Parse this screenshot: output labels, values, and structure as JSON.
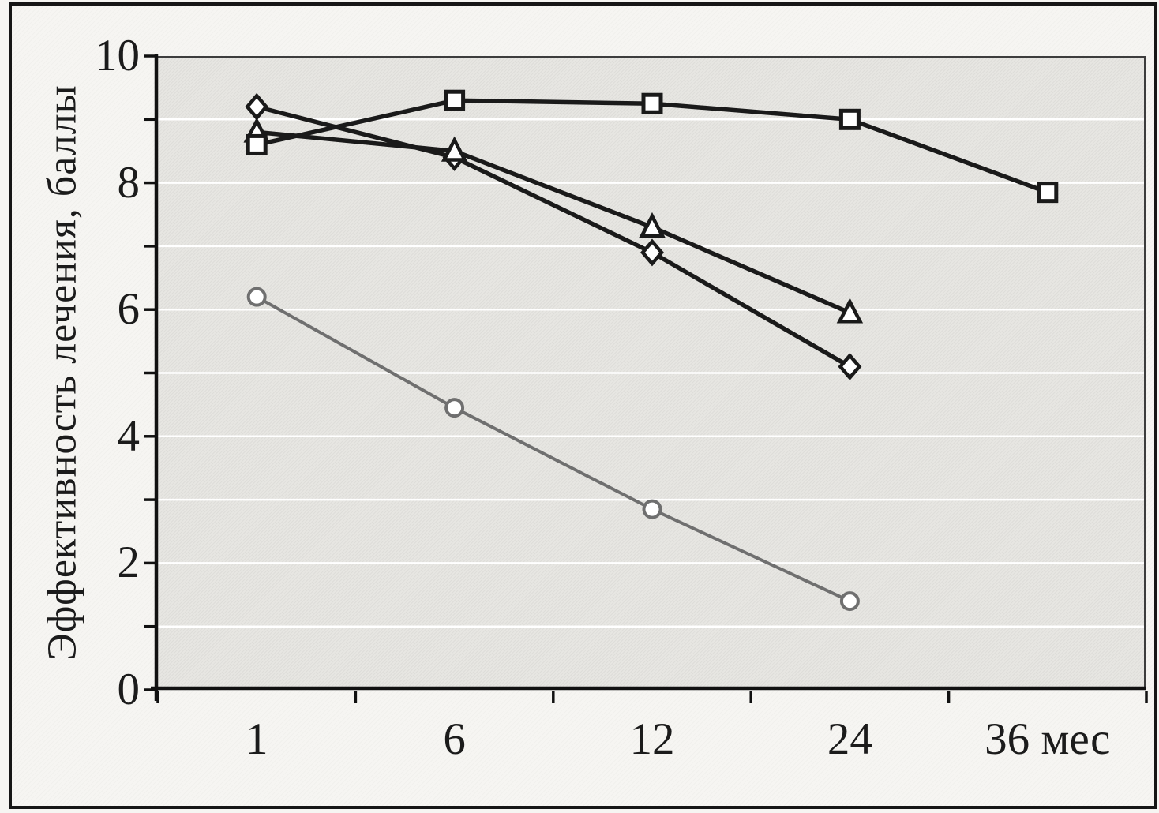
{
  "figure": {
    "kind": "scanned line chart, no title, no legend",
    "frame_color": "#161616"
  },
  "colors": {
    "paper": "#f6f5f2",
    "plot_background": "#e7e6e2",
    "gridline": "#ffffff",
    "axis": "#111111",
    "plot_border": "#3d3d3d",
    "series_black": "#1a1a1a",
    "series_gray": "#6f6f6f",
    "marker_fill": "#ffffff",
    "text": "#1b1b1b"
  },
  "chart_data": {
    "type": "line",
    "title": "",
    "ylabel": "Эффективность лечения, баллы",
    "xlabel": "мес",
    "categories": [
      1,
      6,
      12,
      24,
      36
    ],
    "x_tick_labels": [
      "1",
      "6",
      "12",
      "24",
      "36 мес"
    ],
    "ylim": [
      0,
      10
    ],
    "y_major_ticks": [
      0,
      2,
      4,
      6,
      8,
      10
    ],
    "y_minor_ticks": [
      1,
      3,
      5,
      7,
      9
    ],
    "gridlines_at": [
      1,
      2,
      3,
      4,
      5,
      6,
      7,
      8,
      9
    ],
    "grid": "horizontal white gridlines on gray plot area",
    "legend_position": "none",
    "series": [
      {
        "name": "series-diamond",
        "marker": "diamond",
        "color": "#1a1a1a",
        "line_width": 5.5,
        "values": [
          9.2,
          8.4,
          6.9,
          5.1,
          null
        ]
      },
      {
        "name": "series-triangle",
        "marker": "triangle",
        "color": "#1a1a1a",
        "line_width": 5.5,
        "values": [
          8.8,
          8.5,
          7.3,
          5.95,
          null
        ]
      },
      {
        "name": "series-square",
        "marker": "square",
        "color": "#1a1a1a",
        "line_width": 5.5,
        "values": [
          8.6,
          9.3,
          9.25,
          9.0,
          7.85
        ]
      },
      {
        "name": "series-circle",
        "marker": "circle",
        "color": "#6f6f6f",
        "line_width": 4,
        "values": [
          6.2,
          4.45,
          2.85,
          1.4,
          null
        ]
      }
    ]
  }
}
